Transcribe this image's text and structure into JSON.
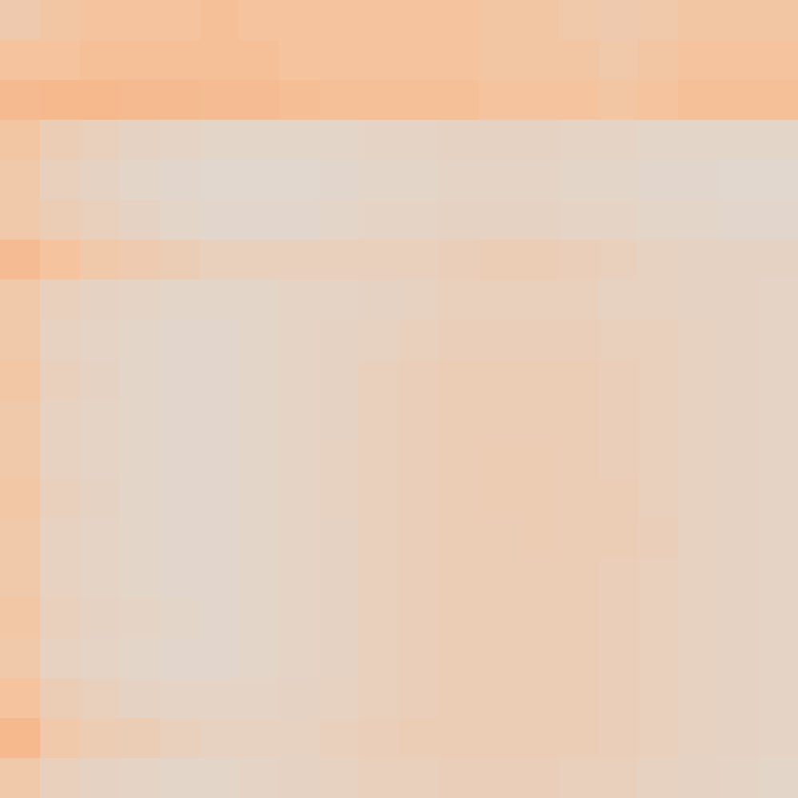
{
  "chart_data": {
    "type": "heatmap",
    "color": "Plasma",
    "tick_labels": false,
    "zlim": [
      0,
      1
    ],
    "z": [
      [
        0.15,
        0.18,
        0.2,
        0.2,
        0.2,
        0.22,
        0.2,
        0.2,
        0.2,
        0.2,
        0.2,
        0.2,
        0.18,
        0.18,
        0.16,
        0.15,
        0.16,
        0.18,
        0.18,
        0.18
      ],
      [
        0.2,
        0.2,
        0.22,
        0.22,
        0.22,
        0.22,
        0.22,
        0.2,
        0.2,
        0.2,
        0.2,
        0.2,
        0.18,
        0.18,
        0.18,
        0.16,
        0.18,
        0.2,
        0.2,
        0.2
      ],
      [
        0.25,
        0.26,
        0.26,
        0.25,
        0.25,
        0.24,
        0.24,
        0.23,
        0.22,
        0.22,
        0.22,
        0.22,
        0.2,
        0.2,
        0.2,
        0.18,
        0.2,
        0.22,
        0.22,
        0.22
      ],
      [
        0.18,
        0.12,
        0.1,
        0.08,
        0.07,
        0.06,
        0.06,
        0.06,
        0.06,
        0.07,
        0.07,
        0.08,
        0.08,
        0.08,
        0.07,
        0.07,
        0.06,
        0.06,
        0.06,
        0.06
      ],
      [
        0.16,
        0.1,
        0.08,
        0.06,
        0.05,
        0.04,
        0.04,
        0.04,
        0.05,
        0.06,
        0.06,
        0.07,
        0.07,
        0.07,
        0.06,
        0.06,
        0.05,
        0.05,
        0.04,
        0.04
      ],
      [
        0.16,
        0.12,
        0.1,
        0.08,
        0.06,
        0.05,
        0.05,
        0.05,
        0.06,
        0.07,
        0.07,
        0.08,
        0.08,
        0.08,
        0.07,
        0.07,
        0.06,
        0.06,
        0.05,
        0.05
      ],
      [
        0.24,
        0.2,
        0.16,
        0.14,
        0.12,
        0.1,
        0.1,
        0.1,
        0.1,
        0.1,
        0.1,
        0.11,
        0.12,
        0.12,
        0.11,
        0.1,
        0.09,
        0.08,
        0.08,
        0.08
      ],
      [
        0.16,
        0.1,
        0.08,
        0.07,
        0.06,
        0.06,
        0.06,
        0.07,
        0.07,
        0.08,
        0.09,
        0.1,
        0.1,
        0.1,
        0.1,
        0.09,
        0.09,
        0.08,
        0.08,
        0.07
      ],
      [
        0.16,
        0.09,
        0.07,
        0.06,
        0.05,
        0.05,
        0.06,
        0.07,
        0.08,
        0.09,
        0.1,
        0.11,
        0.11,
        0.11,
        0.11,
        0.1,
        0.1,
        0.09,
        0.08,
        0.07
      ],
      [
        0.17,
        0.1,
        0.08,
        0.06,
        0.05,
        0.05,
        0.06,
        0.07,
        0.08,
        0.1,
        0.11,
        0.12,
        0.12,
        0.12,
        0.12,
        0.11,
        0.1,
        0.09,
        0.08,
        0.07
      ],
      [
        0.16,
        0.09,
        0.07,
        0.06,
        0.05,
        0.05,
        0.06,
        0.07,
        0.08,
        0.1,
        0.11,
        0.12,
        0.12,
        0.12,
        0.12,
        0.11,
        0.1,
        0.09,
        0.08,
        0.07
      ],
      [
        0.16,
        0.09,
        0.07,
        0.06,
        0.05,
        0.05,
        0.06,
        0.07,
        0.09,
        0.1,
        0.11,
        0.12,
        0.13,
        0.13,
        0.12,
        0.11,
        0.1,
        0.09,
        0.08,
        0.07
      ],
      [
        0.17,
        0.1,
        0.08,
        0.06,
        0.05,
        0.05,
        0.06,
        0.07,
        0.09,
        0.1,
        0.11,
        0.12,
        0.13,
        0.13,
        0.12,
        0.12,
        0.1,
        0.09,
        0.08,
        0.07
      ],
      [
        0.16,
        0.09,
        0.07,
        0.06,
        0.05,
        0.05,
        0.06,
        0.07,
        0.08,
        0.1,
        0.11,
        0.12,
        0.12,
        0.13,
        0.12,
        0.12,
        0.11,
        0.09,
        0.08,
        0.07
      ],
      [
        0.16,
        0.09,
        0.07,
        0.06,
        0.05,
        0.05,
        0.06,
        0.07,
        0.08,
        0.1,
        0.11,
        0.12,
        0.12,
        0.12,
        0.12,
        0.11,
        0.1,
        0.09,
        0.08,
        0.07
      ],
      [
        0.17,
        0.1,
        0.08,
        0.07,
        0.06,
        0.05,
        0.06,
        0.07,
        0.08,
        0.1,
        0.11,
        0.12,
        0.12,
        0.12,
        0.12,
        0.11,
        0.1,
        0.09,
        0.08,
        0.07
      ],
      [
        0.16,
        0.09,
        0.07,
        0.06,
        0.05,
        0.05,
        0.06,
        0.07,
        0.08,
        0.1,
        0.11,
        0.12,
        0.12,
        0.12,
        0.12,
        0.11,
        0.1,
        0.09,
        0.08,
        0.07
      ],
      [
        0.2,
        0.12,
        0.1,
        0.08,
        0.07,
        0.07,
        0.07,
        0.08,
        0.09,
        0.1,
        0.11,
        0.12,
        0.12,
        0.12,
        0.12,
        0.11,
        0.1,
        0.09,
        0.08,
        0.07
      ],
      [
        0.26,
        0.16,
        0.13,
        0.12,
        0.1,
        0.09,
        0.09,
        0.09,
        0.1,
        0.11,
        0.12,
        0.12,
        0.12,
        0.12,
        0.12,
        0.11,
        0.1,
        0.09,
        0.08,
        0.07
      ],
      [
        0.16,
        0.1,
        0.08,
        0.07,
        0.06,
        0.06,
        0.07,
        0.08,
        0.09,
        0.1,
        0.1,
        0.11,
        0.11,
        0.11,
        0.1,
        0.1,
        0.09,
        0.08,
        0.07,
        0.06
      ]
    ]
  }
}
